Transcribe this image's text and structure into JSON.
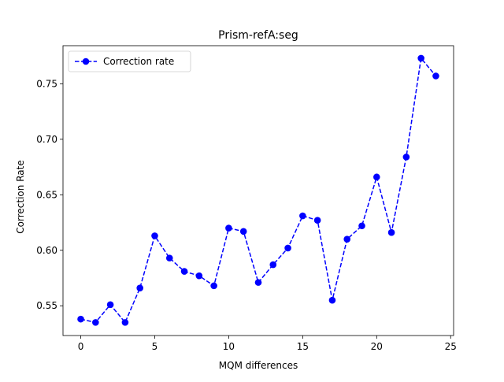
{
  "chart_data": {
    "type": "line",
    "title": "Prism-refA:seg",
    "xlabel": "MQM differences",
    "ylabel": "Correction Rate",
    "xlim": [
      -1.2,
      25.2
    ],
    "ylim": [
      0.5232,
      0.7843
    ],
    "xticks": [
      0,
      5,
      10,
      15,
      20,
      25
    ],
    "yticks": [
      0.55,
      0.6,
      0.65,
      0.7,
      0.75
    ],
    "ytick_labels": [
      "0.55",
      "0.60",
      "0.65",
      "0.70",
      "0.75"
    ],
    "grid": false,
    "legend_position": "upper left",
    "series": [
      {
        "name": "Correction rate",
        "color": "#0000ff",
        "line_style": "dashed",
        "marker": "circle",
        "x": [
          0,
          1,
          2,
          3,
          4,
          5,
          6,
          7,
          8,
          9,
          10,
          11,
          12,
          13,
          14,
          15,
          16,
          17,
          18,
          19,
          20,
          21,
          22,
          23,
          24
        ],
        "y": [
          0.538,
          0.535,
          0.551,
          0.535,
          0.566,
          0.613,
          0.593,
          0.581,
          0.577,
          0.568,
          0.62,
          0.617,
          0.571,
          0.587,
          0.602,
          0.631,
          0.627,
          0.555,
          0.61,
          0.622,
          0.666,
          0.616,
          0.684,
          0.773,
          0.757
        ]
      }
    ]
  }
}
